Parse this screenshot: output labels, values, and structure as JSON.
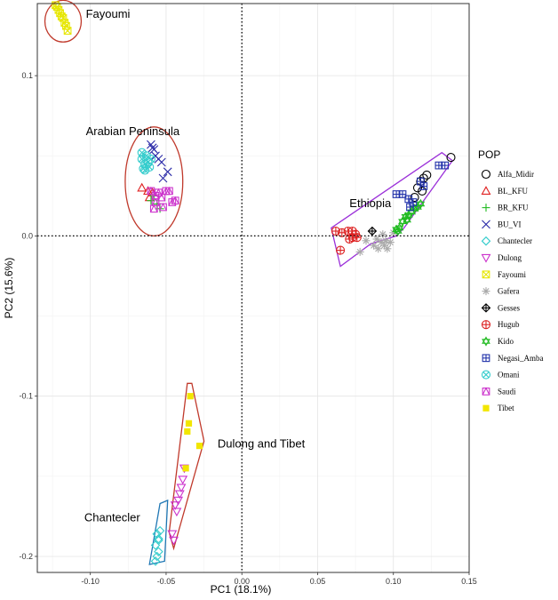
{
  "chart_data": {
    "type": "scatter",
    "title": "",
    "xlabel": "PC1 (18.1%)",
    "ylabel": "PC2 (15.6%)",
    "xlim": [
      -0.135,
      0.15
    ],
    "ylim": [
      -0.21,
      0.145
    ],
    "xticks": [
      -0.1,
      -0.05,
      0.0,
      0.05,
      0.1,
      0.15
    ],
    "xtick_labels": [
      "-0.10",
      "-0.05",
      "0.00",
      "0.05",
      "0.10",
      "0.15"
    ],
    "yticks": [
      -0.2,
      -0.1,
      0.0,
      0.1
    ],
    "ytick_labels": [
      "-0.2",
      "-0.1",
      "0.0",
      "0.1"
    ],
    "grid": true,
    "reference_lines": {
      "x": 0,
      "y": 0,
      "style": "dotted"
    },
    "legend": {
      "title": "POP",
      "position": "right",
      "entries": [
        {
          "name": "Alfa_Midir",
          "shape": "circle",
          "color": "#000000"
        },
        {
          "name": "BL_KFU",
          "shape": "triangle",
          "color": "#e02020"
        },
        {
          "name": "BR_KFU",
          "shape": "plus",
          "color": "#22bb22"
        },
        {
          "name": "BU_VI",
          "shape": "cross",
          "color": "#2a2aa8"
        },
        {
          "name": "Chantecler",
          "shape": "diamond",
          "color": "#33cccc"
        },
        {
          "name": "Dulong",
          "shape": "triangle-down",
          "color": "#cc33cc"
        },
        {
          "name": "Fayoumi",
          "shape": "square-cross",
          "color": "#e6e600"
        },
        {
          "name": "Gafera",
          "shape": "asterisk",
          "color": "#aaaaaa"
        },
        {
          "name": "Gesses",
          "shape": "diamond-plus",
          "color": "#000000"
        },
        {
          "name": "Hugub",
          "shape": "circle-plus",
          "color": "#dd2222"
        },
        {
          "name": "Kido",
          "shape": "star-david",
          "color": "#22bb22"
        },
        {
          "name": "Negasi_Amba",
          "shape": "square-plus",
          "color": "#2233aa"
        },
        {
          "name": "Omani",
          "shape": "circle-cross",
          "color": "#33cccc"
        },
        {
          "name": "Saudi",
          "shape": "square-triangle",
          "color": "#cc33cc"
        },
        {
          "name": "Tibet",
          "shape": "filled-square",
          "color": "#f2e600"
        }
      ]
    },
    "annotations": [
      {
        "text": "Fayoumi",
        "x": -0.103,
        "y": 0.136
      },
      {
        "text": "Arabian Peninsula",
        "x": -0.103,
        "y": 0.063
      },
      {
        "text": "Ethiopia",
        "x": 0.071,
        "y": 0.018
      },
      {
        "text": "Dulong and Tibet",
        "x": -0.016,
        "y": -0.132
      },
      {
        "text": "Chantecler",
        "x": -0.104,
        "y": -0.178
      }
    ],
    "hulls": [
      {
        "name": "Fayoumi",
        "type": "ellipse",
        "color": "#c0392b",
        "center": [
          -0.118,
          0.134
        ],
        "radii": [
          0.012,
          0.013
        ]
      },
      {
        "name": "Arabian Peninsula",
        "type": "ellipse",
        "color": "#c0392b",
        "center": [
          -0.058,
          0.034
        ],
        "radii": [
          0.019,
          0.034
        ]
      },
      {
        "name": "Ethiopia",
        "type": "polygon",
        "color": "#9b30d9",
        "points": [
          [
            0.059,
            0.005
          ],
          [
            0.132,
            0.052
          ],
          [
            0.139,
            0.047
          ],
          [
            0.107,
            0.005
          ],
          [
            0.102,
            0.0
          ],
          [
            0.085,
            -0.005
          ],
          [
            0.065,
            -0.019
          ]
        ]
      },
      {
        "name": "Dulong and Tibet",
        "type": "polygon",
        "color": "#c0392b",
        "points": [
          [
            -0.036,
            -0.092
          ],
          [
            -0.033,
            -0.092
          ],
          [
            -0.025,
            -0.128
          ],
          [
            -0.045,
            -0.195
          ],
          [
            -0.048,
            -0.185
          ]
        ]
      },
      {
        "name": "Chantecler",
        "type": "polygon",
        "color": "#1f77b4",
        "points": [
          [
            -0.054,
            -0.167
          ],
          [
            -0.049,
            -0.165
          ],
          [
            -0.051,
            -0.203
          ],
          [
            -0.061,
            -0.205
          ]
        ]
      }
    ],
    "series": [
      {
        "name": "Alfa_Midir",
        "points": [
          [
            0.122,
            0.038
          ],
          [
            0.12,
            0.036
          ],
          [
            0.118,
            0.034
          ],
          [
            0.119,
            0.028
          ],
          [
            0.114,
            0.024
          ],
          [
            0.116,
            0.03
          ],
          [
            0.138,
            0.049
          ]
        ]
      },
      {
        "name": "BL_KFU",
        "points": [
          [
            -0.066,
            0.03
          ],
          [
            -0.062,
            0.028
          ],
          [
            -0.059,
            0.027
          ],
          [
            -0.061,
            0.024
          ]
        ]
      },
      {
        "name": "BR_KFU",
        "points": [
          [
            -0.058,
            0.025
          ],
          [
            -0.056,
            0.02
          ],
          [
            -0.054,
            0.017
          ],
          [
            -0.06,
            0.022
          ]
        ]
      },
      {
        "name": "BU_VI",
        "points": [
          [
            -0.06,
            0.057
          ],
          [
            -0.058,
            0.054
          ],
          [
            -0.057,
            0.05
          ],
          [
            -0.055,
            0.048
          ],
          [
            -0.053,
            0.046
          ],
          [
            -0.059,
            0.055
          ],
          [
            -0.049,
            0.04
          ],
          [
            -0.052,
            0.036
          ]
        ]
      },
      {
        "name": "Chantecler",
        "points": [
          [
            -0.056,
            -0.186
          ],
          [
            -0.055,
            -0.189
          ],
          [
            -0.057,
            -0.193
          ],
          [
            -0.055,
            -0.197
          ],
          [
            -0.056,
            -0.2
          ],
          [
            -0.057,
            -0.203
          ],
          [
            -0.054,
            -0.184
          ],
          [
            -0.055,
            -0.19
          ]
        ]
      },
      {
        "name": "Dulong",
        "points": [
          [
            -0.039,
            -0.152
          ],
          [
            -0.04,
            -0.157
          ],
          [
            -0.041,
            -0.161
          ],
          [
            -0.042,
            -0.165
          ],
          [
            -0.043,
            -0.172
          ],
          [
            -0.044,
            -0.168
          ],
          [
            -0.046,
            -0.186
          ],
          [
            -0.045,
            -0.19
          ],
          [
            -0.038,
            -0.145
          ]
        ]
      },
      {
        "name": "Fayoumi",
        "points": [
          [
            -0.123,
            0.144
          ],
          [
            -0.122,
            0.143
          ],
          [
            -0.121,
            0.141
          ],
          [
            -0.12,
            0.139
          ],
          [
            -0.118,
            0.136
          ],
          [
            -0.116,
            0.131
          ],
          [
            -0.115,
            0.128
          ],
          [
            -0.119,
            0.137
          ],
          [
            -0.117,
            0.133
          ]
        ]
      },
      {
        "name": "Gafera",
        "points": [
          [
            0.087,
            -0.006
          ],
          [
            0.09,
            -0.008
          ],
          [
            0.092,
            -0.004
          ],
          [
            0.094,
            -0.006
          ],
          [
            0.096,
            -0.008
          ],
          [
            0.098,
            -0.004
          ],
          [
            0.1,
            0.002
          ],
          [
            0.093,
            0.001
          ],
          [
            0.078,
            -0.01
          ],
          [
            0.082,
            -0.003
          ],
          [
            0.089,
            -0.002
          ],
          [
            0.095,
            -0.003
          ]
        ]
      },
      {
        "name": "Gesses",
        "points": [
          [
            0.086,
            0.003
          ]
        ]
      },
      {
        "name": "Hugub",
        "points": [
          [
            0.062,
            0.003
          ],
          [
            0.066,
            0.002
          ],
          [
            0.07,
            0.003
          ],
          [
            0.073,
            0.003
          ],
          [
            0.075,
            0.001
          ],
          [
            0.065,
            -0.009
          ],
          [
            0.071,
            -0.002
          ],
          [
            0.073,
            -0.001
          ],
          [
            0.076,
            -0.001
          ]
        ]
      },
      {
        "name": "Kido",
        "points": [
          [
            0.102,
            0.004
          ],
          [
            0.104,
            0.005
          ],
          [
            0.106,
            0.009
          ],
          [
            0.108,
            0.012
          ],
          [
            0.11,
            0.013
          ],
          [
            0.112,
            0.015
          ],
          [
            0.114,
            0.017
          ],
          [
            0.116,
            0.018
          ],
          [
            0.118,
            0.02
          ],
          [
            0.103,
            0.003
          ],
          [
            0.109,
            0.01
          ]
        ]
      },
      {
        "name": "Negasi_Amba",
        "points": [
          [
            0.102,
            0.026
          ],
          [
            0.106,
            0.026
          ],
          [
            0.11,
            0.023
          ],
          [
            0.113,
            0.021
          ],
          [
            0.118,
            0.034
          ],
          [
            0.12,
            0.031
          ],
          [
            0.13,
            0.044
          ],
          [
            0.134,
            0.044
          ],
          [
            0.111,
            0.018
          ]
        ]
      },
      {
        "name": "Omani",
        "points": [
          [
            -0.066,
            0.048
          ],
          [
            -0.064,
            0.045
          ],
          [
            -0.065,
            0.042
          ],
          [
            -0.063,
            0.05
          ],
          [
            -0.062,
            0.046
          ],
          [
            -0.061,
            0.043
          ],
          [
            -0.066,
            0.052
          ],
          [
            -0.06,
            0.048
          ],
          [
            -0.064,
            0.041
          ]
        ]
      },
      {
        "name": "Saudi",
        "points": [
          [
            -0.06,
            0.028
          ],
          [
            -0.057,
            0.025
          ],
          [
            -0.055,
            0.027
          ],
          [
            -0.053,
            0.024
          ],
          [
            -0.05,
            0.028
          ],
          [
            -0.048,
            0.028
          ],
          [
            -0.046,
            0.021
          ],
          [
            -0.044,
            0.022
          ],
          [
            -0.057,
            0.021
          ],
          [
            -0.052,
            0.018
          ],
          [
            -0.058,
            0.017
          ]
        ]
      },
      {
        "name": "Tibet",
        "points": [
          [
            -0.034,
            -0.1
          ],
          [
            -0.035,
            -0.117
          ],
          [
            -0.036,
            -0.122
          ],
          [
            -0.028,
            -0.131
          ],
          [
            -0.037,
            -0.145
          ]
        ]
      }
    ]
  }
}
